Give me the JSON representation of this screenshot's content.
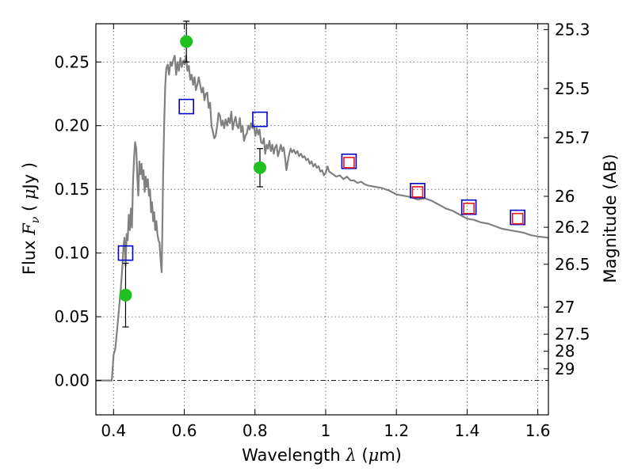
{
  "chart_data": {
    "type": "scatter",
    "xlabel": "Wavelength  λ (μm)",
    "ylabel": "Flux  Fν  ( μJy )",
    "y2label": "Magnitude (AB)",
    "xlim": [
      0.35,
      1.63
    ],
    "ylim": [
      -0.027,
      0.28
    ],
    "x_ticks": [
      {
        "value": 0.4,
        "label": "0.4"
      },
      {
        "value": 0.6,
        "label": "0.6"
      },
      {
        "value": 0.8,
        "label": "0.8"
      },
      {
        "value": 1.0,
        "label": "1"
      },
      {
        "value": 1.2,
        "label": "1.2"
      },
      {
        "value": 1.4,
        "label": "1.4"
      },
      {
        "value": 1.6,
        "label": "1.6"
      }
    ],
    "y_ticks": [
      {
        "value": 0.0,
        "label": "0.00"
      },
      {
        "value": 0.05,
        "label": "0.05"
      },
      {
        "value": 0.1,
        "label": "0.10"
      },
      {
        "value": 0.15,
        "label": "0.15"
      },
      {
        "value": 0.2,
        "label": "0.20"
      },
      {
        "value": 0.25,
        "label": "0.25"
      }
    ],
    "y2_ticks": [
      {
        "label": "25.3",
        "mag": 25.3
      },
      {
        "label": "25.5",
        "mag": 25.5
      },
      {
        "label": "25.7",
        "mag": 25.7
      },
      {
        "label": "26",
        "mag": 26.0
      },
      {
        "label": "26.2",
        "mag": 26.2
      },
      {
        "label": "26.5",
        "mag": 26.5
      },
      {
        "label": "27",
        "mag": 27.0
      },
      {
        "label": "27.5",
        "mag": 27.5
      },
      {
        "label": "28",
        "mag": 28.0
      },
      {
        "label": "29",
        "mag": 29.0
      }
    ],
    "grid": true,
    "series": [
      {
        "kind": "line",
        "color": "#808080",
        "points": [
          [
            0.35,
            0.0
          ],
          [
            0.395,
            0.0
          ],
          [
            0.4,
            0.02
          ],
          [
            0.405,
            0.025
          ],
          [
            0.41,
            0.04
          ],
          [
            0.415,
            0.055
          ],
          [
            0.42,
            0.07
          ],
          [
            0.425,
            0.09
          ],
          [
            0.428,
            0.105
          ],
          [
            0.431,
            0.112
          ],
          [
            0.434,
            0.09
          ],
          [
            0.437,
            0.115
          ],
          [
            0.44,
            0.11
          ],
          [
            0.443,
            0.13
          ],
          [
            0.446,
            0.118
          ],
          [
            0.449,
            0.135
          ],
          [
            0.452,
            0.12
          ],
          [
            0.455,
            0.155
          ],
          [
            0.458,
            0.175
          ],
          [
            0.461,
            0.187
          ],
          [
            0.464,
            0.182
          ],
          [
            0.467,
            0.16
          ],
          [
            0.47,
            0.145
          ],
          [
            0.473,
            0.172
          ],
          [
            0.476,
            0.162
          ],
          [
            0.479,
            0.17
          ],
          [
            0.482,
            0.158
          ],
          [
            0.485,
            0.165
          ],
          [
            0.488,
            0.148
          ],
          [
            0.491,
            0.16
          ],
          [
            0.494,
            0.152
          ],
          [
            0.497,
            0.158
          ],
          [
            0.5,
            0.145
          ],
          [
            0.503,
            0.15
          ],
          [
            0.506,
            0.132
          ],
          [
            0.509,
            0.14
          ],
          [
            0.512,
            0.125
          ],
          [
            0.515,
            0.132
          ],
          [
            0.518,
            0.118
          ],
          [
            0.521,
            0.125
          ],
          [
            0.524,
            0.115
          ],
          [
            0.527,
            0.11
          ],
          [
            0.53,
            0.108
          ],
          [
            0.533,
            0.095
          ],
          [
            0.536,
            0.085
          ],
          [
            0.538,
            0.12
          ],
          [
            0.54,
            0.16
          ],
          [
            0.543,
            0.2
          ],
          [
            0.546,
            0.23
          ],
          [
            0.549,
            0.245
          ],
          [
            0.553,
            0.248
          ],
          [
            0.557,
            0.24
          ],
          [
            0.561,
            0.25
          ],
          [
            0.565,
            0.247
          ],
          [
            0.569,
            0.252
          ],
          [
            0.573,
            0.255
          ],
          [
            0.577,
            0.24
          ],
          [
            0.581,
            0.25
          ],
          [
            0.585,
            0.243
          ],
          [
            0.589,
            0.253
          ],
          [
            0.593,
            0.246
          ],
          [
            0.597,
            0.251
          ],
          [
            0.601,
            0.248
          ],
          [
            0.605,
            0.255
          ],
          [
            0.609,
            0.243
          ],
          [
            0.613,
            0.247
          ],
          [
            0.617,
            0.236
          ],
          [
            0.621,
            0.24
          ],
          [
            0.625,
            0.232
          ],
          [
            0.629,
            0.238
          ],
          [
            0.633,
            0.228
          ],
          [
            0.637,
            0.232
          ],
          [
            0.641,
            0.238
          ],
          [
            0.645,
            0.232
          ],
          [
            0.649,
            0.226
          ],
          [
            0.653,
            0.23
          ],
          [
            0.657,
            0.22
          ],
          [
            0.661,
            0.225
          ],
          [
            0.665,
            0.226
          ],
          [
            0.669,
            0.214
          ],
          [
            0.673,
            0.218
          ],
          [
            0.677,
            0.2
          ],
          [
            0.681,
            0.195
          ],
          [
            0.685,
            0.19
          ],
          [
            0.689,
            0.192
          ],
          [
            0.693,
            0.2
          ],
          [
            0.697,
            0.21
          ],
          [
            0.701,
            0.208
          ],
          [
            0.705,
            0.2
          ],
          [
            0.709,
            0.204
          ],
          [
            0.713,
            0.198
          ],
          [
            0.717,
            0.205
          ],
          [
            0.721,
            0.2
          ],
          [
            0.725,
            0.206
          ],
          [
            0.729,
            0.202
          ],
          [
            0.733,
            0.211
          ],
          [
            0.737,
            0.197
          ],
          [
            0.741,
            0.203
          ],
          [
            0.745,
            0.207
          ],
          [
            0.749,
            0.2
          ],
          [
            0.753,
            0.198
          ],
          [
            0.757,
            0.206
          ],
          [
            0.761,
            0.195
          ],
          [
            0.765,
            0.2
          ],
          [
            0.769,
            0.188
          ],
          [
            0.773,
            0.192
          ],
          [
            0.777,
            0.194
          ],
          [
            0.781,
            0.2
          ],
          [
            0.785,
            0.197
          ],
          [
            0.789,
            0.202
          ],
          [
            0.793,
            0.198
          ],
          [
            0.797,
            0.2
          ],
          [
            0.801,
            0.192
          ],
          [
            0.805,
            0.198
          ],
          [
            0.809,
            0.193
          ],
          [
            0.813,
            0.197
          ],
          [
            0.817,
            0.187
          ],
          [
            0.821,
            0.186
          ],
          [
            0.825,
            0.19
          ],
          [
            0.829,
            0.178
          ],
          [
            0.833,
            0.185
          ],
          [
            0.837,
            0.182
          ],
          [
            0.841,
            0.188
          ],
          [
            0.845,
            0.18
          ],
          [
            0.849,
            0.185
          ],
          [
            0.853,
            0.178
          ],
          [
            0.857,
            0.183
          ],
          [
            0.861,
            0.185
          ],
          [
            0.865,
            0.176
          ],
          [
            0.869,
            0.18
          ],
          [
            0.873,
            0.185
          ],
          [
            0.877,
            0.18
          ],
          [
            0.881,
            0.183
          ],
          [
            0.885,
            0.175
          ],
          [
            0.889,
            0.165
          ],
          [
            0.893,
            0.172
          ],
          [
            0.897,
            0.178
          ],
          [
            0.901,
            0.182
          ],
          [
            0.905,
            0.179
          ],
          [
            0.91,
            0.181
          ],
          [
            0.915,
            0.178
          ],
          [
            0.92,
            0.18
          ],
          [
            0.925,
            0.176
          ],
          [
            0.93,
            0.178
          ],
          [
            0.935,
            0.175
          ],
          [
            0.94,
            0.176
          ],
          [
            0.945,
            0.173
          ],
          [
            0.95,
            0.174
          ],
          [
            0.955,
            0.17
          ],
          [
            0.96,
            0.172
          ],
          [
            0.965,
            0.168
          ],
          [
            0.97,
            0.17
          ],
          [
            0.975,
            0.167
          ],
          [
            0.98,
            0.168
          ],
          [
            0.985,
            0.164
          ],
          [
            0.99,
            0.165
          ],
          [
            0.995,
            0.161
          ],
          [
            1.0,
            0.163
          ],
          [
            1.005,
            0.168
          ],
          [
            1.01,
            0.164
          ],
          [
            1.02,
            0.162
          ],
          [
            1.03,
            0.16
          ],
          [
            1.04,
            0.161
          ],
          [
            1.05,
            0.158
          ],
          [
            1.06,
            0.16
          ],
          [
            1.07,
            0.157
          ],
          [
            1.08,
            0.157
          ],
          [
            1.09,
            0.155
          ],
          [
            1.1,
            0.156
          ],
          [
            1.11,
            0.154
          ],
          [
            1.12,
            0.153
          ],
          [
            1.14,
            0.152
          ],
          [
            1.16,
            0.151
          ],
          [
            1.18,
            0.149
          ],
          [
            1.2,
            0.146
          ],
          [
            1.22,
            0.145
          ],
          [
            1.24,
            0.144
          ],
          [
            1.26,
            0.142
          ],
          [
            1.28,
            0.143
          ],
          [
            1.3,
            0.141
          ],
          [
            1.32,
            0.138
          ],
          [
            1.34,
            0.135
          ],
          [
            1.36,
            0.133
          ],
          [
            1.38,
            0.13
          ],
          [
            1.4,
            0.127
          ],
          [
            1.42,
            0.126
          ],
          [
            1.44,
            0.124
          ],
          [
            1.46,
            0.123
          ],
          [
            1.48,
            0.121
          ],
          [
            1.5,
            0.119
          ],
          [
            1.52,
            0.118
          ],
          [
            1.54,
            0.117
          ],
          [
            1.56,
            0.116
          ],
          [
            1.58,
            0.114
          ],
          [
            1.6,
            0.113
          ],
          [
            1.63,
            0.112
          ]
        ]
      },
      {
        "kind": "errorbar",
        "color": "#1fc01f",
        "points": [
          {
            "x": 0.434,
            "y": 0.067,
            "err": 0.025
          },
          {
            "x": 0.606,
            "y": 0.266,
            "err": 0.016
          },
          {
            "x": 0.814,
            "y": 0.167,
            "err": 0.015
          }
        ]
      },
      {
        "kind": "marker-square",
        "color": "#0000cc",
        "points": [
          {
            "x": 0.434,
            "y": 0.1
          },
          {
            "x": 0.606,
            "y": 0.215
          },
          {
            "x": 0.814,
            "y": 0.205
          },
          {
            "x": 1.066,
            "y": 0.172
          },
          {
            "x": 1.26,
            "y": 0.149
          },
          {
            "x": 1.405,
            "y": 0.136
          },
          {
            "x": 1.543,
            "y": 0.128
          }
        ]
      },
      {
        "kind": "marker-square",
        "color": "#e8181b",
        "points": [
          {
            "x": 1.066,
            "y": 0.171
          },
          {
            "x": 1.26,
            "y": 0.148
          },
          {
            "x": 1.405,
            "y": 0.135
          },
          {
            "x": 1.543,
            "y": 0.127
          }
        ]
      }
    ]
  }
}
